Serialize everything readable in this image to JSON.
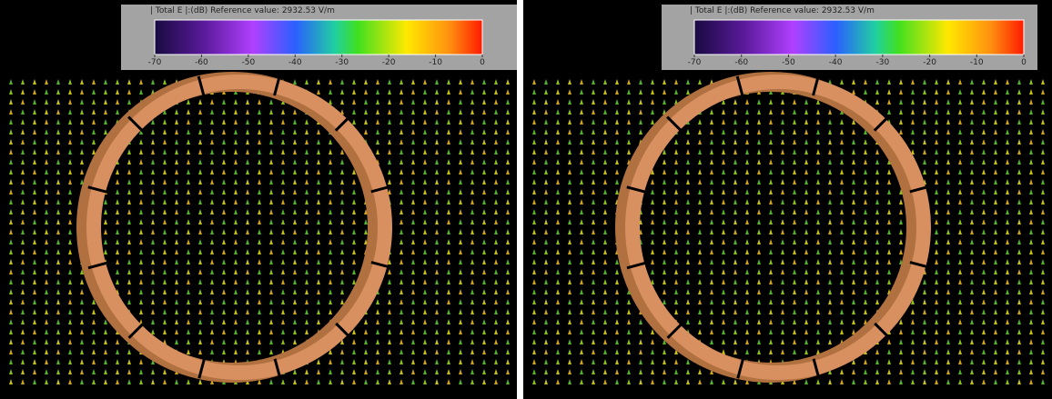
{
  "panels": [
    {
      "colorbar": {
        "title": "| Total E |:(dB) Reference value: 2932.53 V/m",
        "lim": [
          -70,
          0
        ],
        "ticks": [
          -70,
          -60,
          -50,
          -40,
          -30,
          -20,
          -10,
          0
        ]
      }
    },
    {
      "colorbar": {
        "title": "| Total E |:(dB) Reference value: 2932.53 V/m",
        "lim": [
          -70,
          0
        ],
        "ticks": [
          -70,
          -60,
          -50,
          -40,
          -30,
          -20,
          -10,
          0
        ]
      }
    }
  ]
}
